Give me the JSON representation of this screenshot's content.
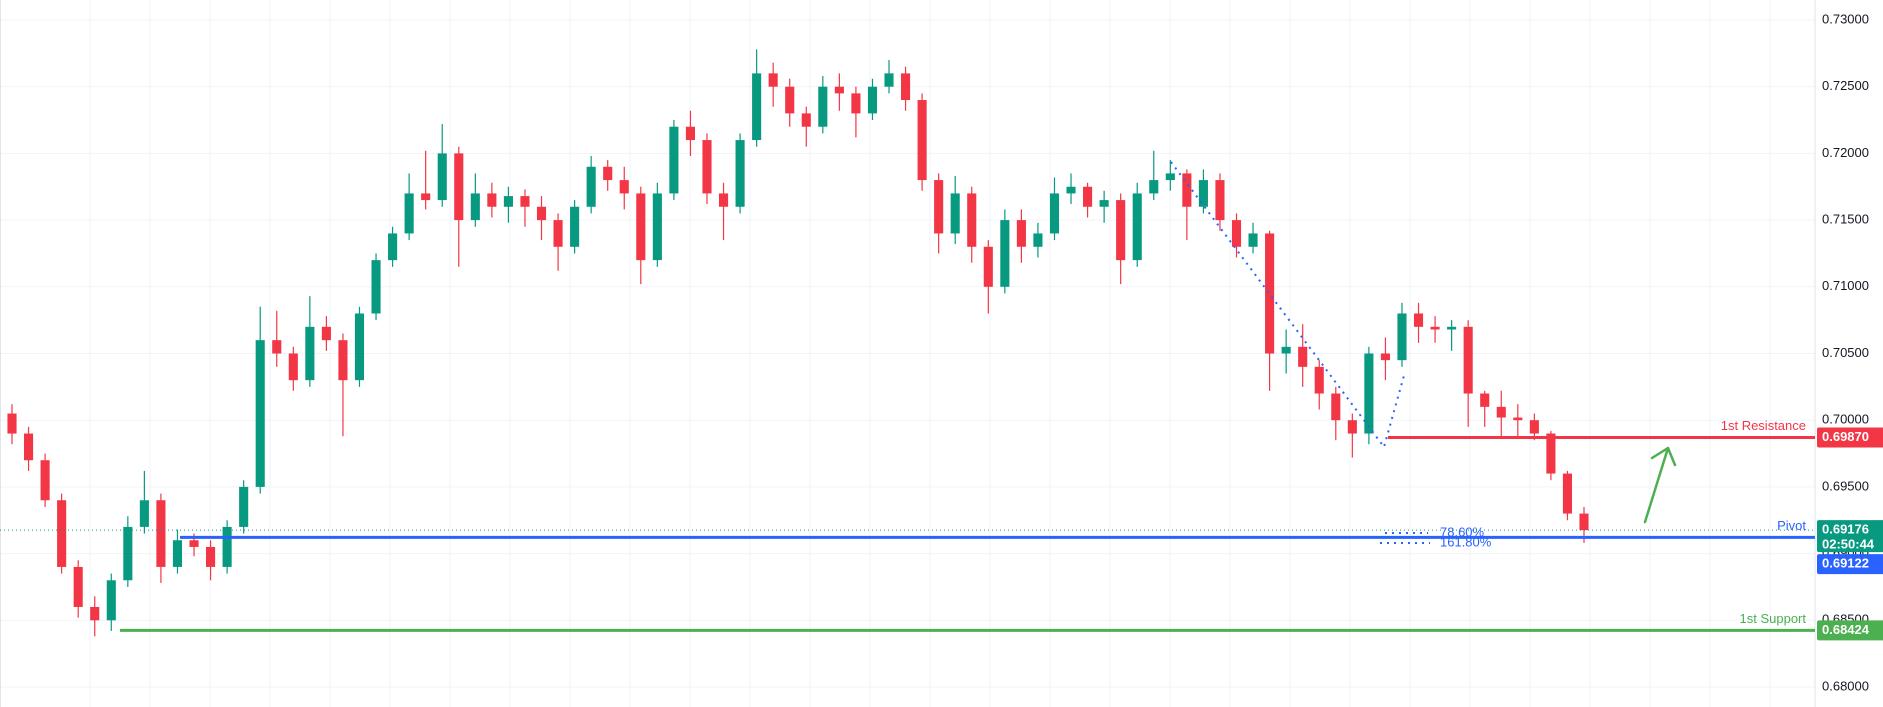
{
  "chart_data": {
    "type": "candlestick",
    "up_color": "#089981",
    "down_color": "#f23645",
    "grid": true,
    "ylim": [
      0.6785,
      0.7315
    ],
    "yticks": [
      {
        "value": 0.68,
        "label": "0.68000"
      },
      {
        "value": 0.685,
        "label": "0.68500"
      },
      {
        "value": 0.69,
        "label": "0.69000"
      },
      {
        "value": 0.695,
        "label": "0.69500"
      },
      {
        "value": 0.7,
        "label": "0.70000"
      },
      {
        "value": 0.705,
        "label": "0.70500"
      },
      {
        "value": 0.71,
        "label": "0.71000"
      },
      {
        "value": 0.715,
        "label": "0.71500"
      },
      {
        "value": 0.72,
        "label": "0.72000"
      },
      {
        "value": 0.725,
        "label": "0.72500"
      },
      {
        "value": 0.73,
        "label": "0.73000"
      }
    ],
    "ohlc": [
      [
        0.7005,
        0.7012,
        0.6982,
        0.699
      ],
      [
        0.699,
        0.6995,
        0.6962,
        0.697
      ],
      [
        0.697,
        0.6975,
        0.6935,
        0.694
      ],
      [
        0.694,
        0.6945,
        0.6885,
        0.689
      ],
      [
        0.689,
        0.6895,
        0.6852,
        0.686
      ],
      [
        0.686,
        0.6868,
        0.6838,
        0.685
      ],
      [
        0.685,
        0.6885,
        0.6842,
        0.688
      ],
      [
        0.688,
        0.6928,
        0.6875,
        0.692
      ],
      [
        0.692,
        0.6962,
        0.6915,
        0.694
      ],
      [
        0.694,
        0.6945,
        0.6878,
        0.689
      ],
      [
        0.689,
        0.6918,
        0.6885,
        0.691
      ],
      [
        0.691,
        0.6915,
        0.6898,
        0.6905
      ],
      [
        0.6905,
        0.691,
        0.688,
        0.689
      ],
      [
        0.689,
        0.6925,
        0.6885,
        0.692
      ],
      [
        0.692,
        0.6955,
        0.6915,
        0.695
      ],
      [
        0.695,
        0.7085,
        0.6945,
        0.706
      ],
      [
        0.706,
        0.7082,
        0.704,
        0.705
      ],
      [
        0.705,
        0.7055,
        0.7022,
        0.703
      ],
      [
        0.703,
        0.7093,
        0.7025,
        0.707
      ],
      [
        0.707,
        0.7078,
        0.7052,
        0.706
      ],
      [
        0.706,
        0.7065,
        0.6988,
        0.703
      ],
      [
        0.703,
        0.7085,
        0.7025,
        0.708
      ],
      [
        0.708,
        0.7125,
        0.7075,
        0.712
      ],
      [
        0.712,
        0.7145,
        0.7115,
        0.714
      ],
      [
        0.714,
        0.7185,
        0.7135,
        0.717
      ],
      [
        0.717,
        0.7202,
        0.7158,
        0.7165
      ],
      [
        0.7165,
        0.7222,
        0.716,
        0.72
      ],
      [
        0.72,
        0.7205,
        0.7115,
        0.715
      ],
      [
        0.715,
        0.7185,
        0.7145,
        0.717
      ],
      [
        0.717,
        0.7178,
        0.7152,
        0.716
      ],
      [
        0.716,
        0.7175,
        0.7148,
        0.7168
      ],
      [
        0.7168,
        0.7173,
        0.7145,
        0.716
      ],
      [
        0.716,
        0.7168,
        0.7135,
        0.715
      ],
      [
        0.715,
        0.7155,
        0.7112,
        0.713
      ],
      [
        0.713,
        0.7165,
        0.7125,
        0.716
      ],
      [
        0.716,
        0.7198,
        0.7155,
        0.719
      ],
      [
        0.719,
        0.7195,
        0.7172,
        0.718
      ],
      [
        0.718,
        0.719,
        0.7158,
        0.717
      ],
      [
        0.717,
        0.7175,
        0.7102,
        0.712
      ],
      [
        0.712,
        0.7178,
        0.7115,
        0.717
      ],
      [
        0.717,
        0.7225,
        0.7165,
        0.722
      ],
      [
        0.722,
        0.7232,
        0.7198,
        0.721
      ],
      [
        0.721,
        0.7215,
        0.7162,
        0.717
      ],
      [
        0.717,
        0.7178,
        0.7135,
        0.716
      ],
      [
        0.716,
        0.7215,
        0.7155,
        0.721
      ],
      [
        0.721,
        0.7278,
        0.7205,
        0.726
      ],
      [
        0.726,
        0.7268,
        0.7235,
        0.725
      ],
      [
        0.725,
        0.7256,
        0.722,
        0.723
      ],
      [
        0.723,
        0.7235,
        0.7205,
        0.722
      ],
      [
        0.722,
        0.7258,
        0.7215,
        0.725
      ],
      [
        0.725,
        0.726,
        0.7232,
        0.7245
      ],
      [
        0.7245,
        0.725,
        0.7212,
        0.723
      ],
      [
        0.723,
        0.7256,
        0.7225,
        0.725
      ],
      [
        0.725,
        0.727,
        0.7245,
        0.726
      ],
      [
        0.726,
        0.7265,
        0.7232,
        0.724
      ],
      [
        0.724,
        0.7245,
        0.7172,
        0.718
      ],
      [
        0.718,
        0.7185,
        0.7125,
        0.714
      ],
      [
        0.714,
        0.7183,
        0.7132,
        0.717
      ],
      [
        0.717,
        0.7175,
        0.7118,
        0.713
      ],
      [
        0.713,
        0.7135,
        0.708,
        0.71
      ],
      [
        0.71,
        0.7158,
        0.7095,
        0.715
      ],
      [
        0.715,
        0.7158,
        0.7118,
        0.713
      ],
      [
        0.713,
        0.7148,
        0.7122,
        0.714
      ],
      [
        0.714,
        0.7182,
        0.7135,
        0.717
      ],
      [
        0.717,
        0.7185,
        0.7162,
        0.7175
      ],
      [
        0.7175,
        0.7178,
        0.7152,
        0.716
      ],
      [
        0.716,
        0.7172,
        0.7148,
        0.7165
      ],
      [
        0.7165,
        0.717,
        0.7102,
        0.712
      ],
      [
        0.712,
        0.7178,
        0.7115,
        0.717
      ],
      [
        0.717,
        0.7202,
        0.7165,
        0.718
      ],
      [
        0.718,
        0.7195,
        0.7172,
        0.7185
      ],
      [
        0.7185,
        0.7188,
        0.7135,
        0.716
      ],
      [
        0.716,
        0.7188,
        0.7155,
        0.718
      ],
      [
        0.718,
        0.7185,
        0.7142,
        0.715
      ],
      [
        0.715,
        0.7155,
        0.7122,
        0.713
      ],
      [
        0.713,
        0.7148,
        0.7125,
        0.714
      ],
      [
        0.714,
        0.7142,
        0.7022,
        0.705
      ],
      [
        0.705,
        0.7068,
        0.7035,
        0.7055
      ],
      [
        0.7055,
        0.7072,
        0.7025,
        0.704
      ],
      [
        0.704,
        0.7045,
        0.7008,
        0.702
      ],
      [
        0.702,
        0.7025,
        0.6985,
        0.7
      ],
      [
        0.7,
        0.7005,
        0.6972,
        0.699
      ],
      [
        0.699,
        0.7055,
        0.6982,
        0.705
      ],
      [
        0.705,
        0.7062,
        0.703,
        0.7045
      ],
      [
        0.7045,
        0.7088,
        0.704,
        0.708
      ],
      [
        0.708,
        0.7088,
        0.7058,
        0.707
      ],
      [
        0.707,
        0.7078,
        0.7058,
        0.7068
      ],
      [
        0.7068,
        0.7075,
        0.7052,
        0.707
      ],
      [
        0.707,
        0.7075,
        0.6995,
        0.702
      ],
      [
        0.702,
        0.7022,
        0.6995,
        0.701
      ],
      [
        0.701,
        0.7022,
        0.6988,
        0.7002
      ],
      [
        0.7002,
        0.7012,
        0.6988,
        0.7
      ],
      [
        0.7,
        0.7005,
        0.6985,
        0.699
      ],
      [
        0.699,
        0.6992,
        0.6955,
        0.696
      ],
      [
        0.696,
        0.6962,
        0.6925,
        0.693
      ],
      [
        0.693,
        0.6935,
        0.6908,
        0.69176
      ]
    ],
    "levels": [
      {
        "name": "1st Resistance",
        "color": "#f23645",
        "price": {
          "value": 0.6987,
          "label": "0.69870"
        }
      },
      {
        "name": "Pivot",
        "color": "#2962ff",
        "price": {
          "value": 0.69122,
          "label": "0.69122"
        }
      },
      {
        "name": "1st Support",
        "color": "#4caf50",
        "price": {
          "value": 0.68424,
          "label": "0.68424"
        }
      }
    ],
    "last_price": {
      "value": 0.69176,
      "label": "0.69176"
    },
    "countdown": "02:50:44",
    "fib_labels": [
      "78.60%",
      "161.80%"
    ]
  }
}
